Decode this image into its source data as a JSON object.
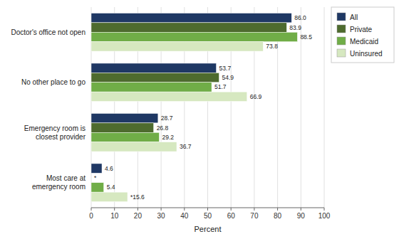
{
  "chart_data": {
    "type": "bar",
    "orientation": "horizontal",
    "categories": [
      "Doctor's office not open",
      "No other place to go",
      "Emergency room is\nclosest provider",
      "Most care at\nemergency room"
    ],
    "series": [
      {
        "name": "All",
        "color": "#1F3864",
        "values": [
          86.0,
          53.7,
          28.7,
          4.6
        ],
        "value_labels": [
          "86.0",
          "53.7",
          "28.7",
          "4.6"
        ]
      },
      {
        "name": "Private",
        "color": "#4E6B2E",
        "values": [
          83.9,
          54.9,
          26.8,
          0
        ],
        "value_labels": [
          "83.9",
          "54.9",
          "26.8",
          "*"
        ]
      },
      {
        "name": "Medicaid",
        "color": "#70AD47",
        "values": [
          88.5,
          51.7,
          29.2,
          5.4
        ],
        "value_labels": [
          "88.5",
          "51.7",
          "29.2",
          "5.4"
        ]
      },
      {
        "name": "Uninsured",
        "color": "#D6E8C0",
        "values": [
          73.8,
          66.9,
          36.7,
          15.6
        ],
        "value_labels": [
          "73.8",
          "66.9",
          "36.7",
          "*15.6"
        ]
      }
    ],
    "xlabel": "Percent",
    "xlim": [
      0,
      100
    ],
    "xticks": [
      0,
      10,
      20,
      30,
      40,
      50,
      60,
      70,
      80,
      90,
      100
    ],
    "grid": true,
    "legend": "right",
    "data_labels": true
  }
}
